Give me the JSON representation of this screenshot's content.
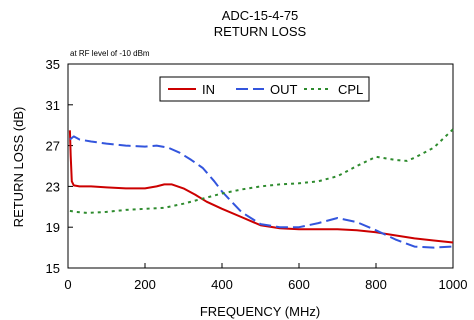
{
  "chart_data": {
    "type": "line",
    "title": "ADC-15-4-75",
    "subtitle": "RETURN LOSS",
    "annotation": "at RF level of -10 dBm",
    "xlabel": "FREQUENCY (MHz)",
    "ylabel": "RETURN LOSS (dB)",
    "xlim": [
      0,
      1000
    ],
    "ylim": [
      15,
      35
    ],
    "xticks": [
      0,
      200,
      400,
      600,
      800,
      1000
    ],
    "yticks": [
      15,
      19,
      23,
      27,
      31,
      35
    ],
    "grid": false,
    "legend_position": "top-right",
    "series": [
      {
        "name": "IN",
        "color": "#cc0000",
        "dash": "solid",
        "x": [
          5,
          7,
          10,
          15,
          30,
          60,
          100,
          150,
          200,
          230,
          250,
          270,
          300,
          330,
          360,
          400,
          450,
          500,
          550,
          600,
          650,
          700,
          750,
          800,
          850,
          900,
          950,
          1000
        ],
        "y": [
          28.5,
          26,
          23.5,
          23.1,
          23.0,
          23.0,
          22.9,
          22.8,
          22.8,
          23.0,
          23.2,
          23.2,
          22.8,
          22.2,
          21.5,
          20.8,
          20.0,
          19.2,
          18.9,
          18.8,
          18.8,
          18.8,
          18.7,
          18.5,
          18.2,
          17.9,
          17.7,
          17.5
        ]
      },
      {
        "name": "OUT",
        "color": "#3355dd",
        "dash": "dashed",
        "x": [
          5,
          15,
          30,
          60,
          100,
          150,
          200,
          230,
          260,
          290,
          320,
          350,
          380,
          400,
          450,
          500,
          550,
          600,
          650,
          700,
          750,
          800,
          850,
          900,
          950,
          1000
        ],
        "y": [
          27.6,
          27.9,
          27.6,
          27.4,
          27.2,
          27.0,
          26.9,
          27.0,
          26.8,
          26.3,
          25.6,
          24.8,
          23.5,
          22.5,
          20.5,
          19.3,
          19.0,
          19.0,
          19.4,
          19.9,
          19.5,
          18.7,
          17.8,
          17.1,
          17.0,
          17.1
        ]
      },
      {
        "name": "CPL",
        "color": "#2e8b2e",
        "dash": "dotted",
        "x": [
          5,
          20,
          50,
          100,
          150,
          200,
          250,
          300,
          350,
          400,
          450,
          500,
          550,
          600,
          650,
          700,
          750,
          800,
          850,
          880,
          900,
          950,
          1000
        ],
        "y": [
          20.6,
          20.5,
          20.4,
          20.5,
          20.7,
          20.8,
          20.9,
          21.3,
          21.8,
          22.3,
          22.7,
          23.0,
          23.2,
          23.3,
          23.5,
          24.0,
          25.0,
          25.9,
          25.6,
          25.5,
          25.8,
          26.8,
          28.6
        ]
      }
    ]
  }
}
